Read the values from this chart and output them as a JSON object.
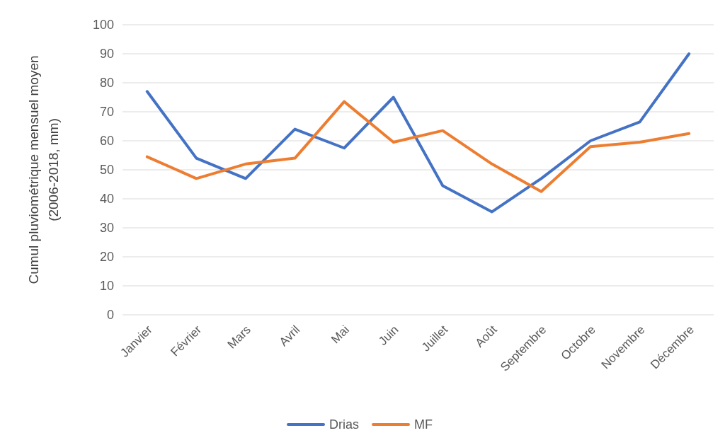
{
  "chart_data": {
    "type": "line",
    "ylabel": "Cumul pluviométrique mensuel moyen\n(2006-2018, mm)",
    "categories": [
      "Janvier",
      "Février",
      "Mars",
      "Avril",
      "Mai",
      "Juin",
      "Juillet",
      "Août",
      "Septembre",
      "Octobre",
      "Novembre",
      "Décembre"
    ],
    "series": [
      {
        "name": "Drias",
        "color": "#4472c4",
        "values": [
          77,
          54,
          47,
          64,
          57.5,
          75,
          44.5,
          35.5,
          47,
          60,
          66.5,
          90
        ]
      },
      {
        "name": "MF",
        "color": "#ed7d31",
        "values": [
          54.5,
          47,
          52,
          54,
          73.5,
          59.5,
          63.5,
          52,
          42.5,
          58,
          59.5,
          62.5
        ]
      }
    ],
    "ylim": [
      0,
      100
    ],
    "yticks": [
      0,
      10,
      20,
      30,
      40,
      50,
      60,
      70,
      80,
      90,
      100
    ],
    "grid": "y",
    "legend": "bottom",
    "marker": "none",
    "line_style": "solid"
  }
}
